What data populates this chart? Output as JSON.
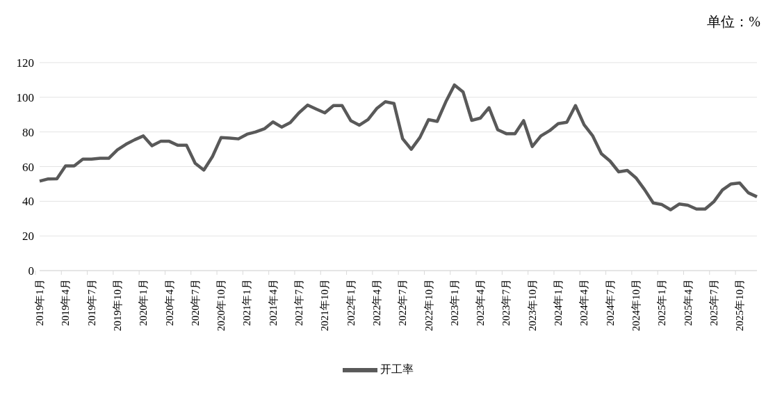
{
  "chart_data": {
    "type": "line",
    "categories": [
      "2019年1月",
      null,
      null,
      "2019年4月",
      null,
      null,
      "2019年7月",
      null,
      null,
      "2019年10月",
      null,
      null,
      "2020年1月",
      null,
      null,
      "2020年4月",
      null,
      null,
      "2020年7月",
      null,
      null,
      "2020年10月",
      null,
      null,
      "2021年1月",
      null,
      null,
      "2021年4月",
      null,
      null,
      "2021年7月",
      null,
      null,
      "2021年10月",
      null,
      null,
      "2022年1月",
      null,
      null,
      "2022年4月",
      null,
      null,
      "2022年7月",
      null,
      null,
      "2022年10月",
      null,
      null,
      "2023年1月",
      null,
      null,
      "2023年4月",
      null,
      null,
      "2023年7月",
      null,
      null,
      "2023年10月",
      null,
      null,
      "2024年1月",
      null,
      null,
      "2024年4月",
      null,
      null,
      "2024年7月",
      null,
      null,
      "2024年10月",
      null,
      null,
      "2025年1月",
      null,
      null,
      "2025年4月",
      null,
      null,
      "2025年7月",
      null,
      null,
      "2025年10月",
      null,
      null
    ],
    "series": [
      {
        "name": "开工率",
        "color": "#595959",
        "values": [
          51.6,
          52.9,
          53,
          60.4,
          60.4,
          64.3,
          64.3,
          64.8,
          64.8,
          69.7,
          72.9,
          75.5,
          77.7,
          72,
          74.6,
          74.6,
          72.3,
          72.3,
          61.9,
          58,
          65.8,
          76.8,
          76.5,
          76,
          78.7,
          80,
          81.8,
          85.8,
          82.8,
          85.4,
          91,
          95.5,
          93.2,
          91,
          95.2,
          95.2,
          86.5,
          83.9,
          87.1,
          93.5,
          97.4,
          96.4,
          76.1,
          70,
          76.8,
          87.1,
          86.1,
          97.4,
          107.1,
          103,
          86.7,
          88,
          94,
          81.3,
          79,
          79,
          86.5,
          71.6,
          77.7,
          80.7,
          84.8,
          85.6,
          95.2,
          84.1,
          77.7,
          67.4,
          63.2,
          57,
          57.8,
          53.5,
          46.7,
          39,
          38.1,
          35.1,
          38.4,
          37.7,
          35.5,
          35.5,
          39.7,
          46.5,
          50,
          50.6,
          44.9,
          42.6
        ]
      }
    ],
    "ylim": [
      0,
      120
    ],
    "yticks": [
      0,
      20,
      40,
      60,
      80,
      100,
      120
    ],
    "grid": "y",
    "legend": "bottom",
    "marker": "none",
    "line_style": "solid",
    "annotations": [
      "单位：%"
    ]
  }
}
